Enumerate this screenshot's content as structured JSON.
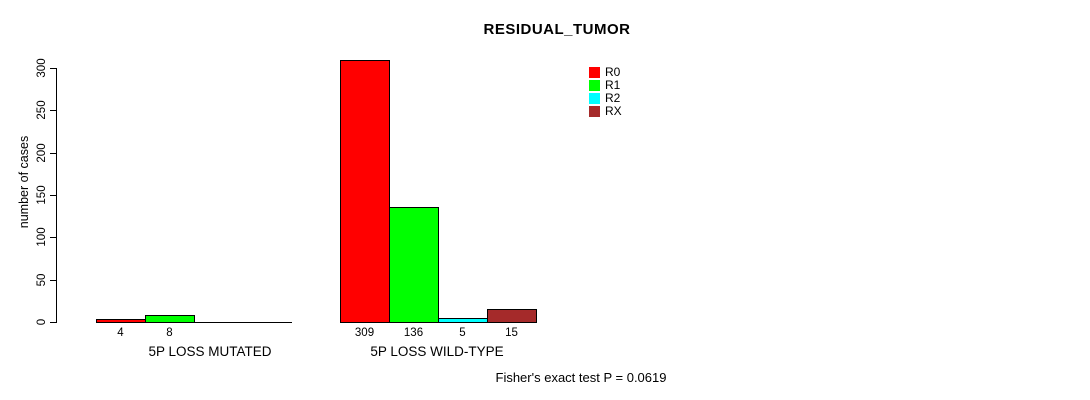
{
  "page": {
    "background": "#ffffff",
    "text_color": "#000000"
  },
  "chart_data": {
    "type": "bar",
    "title": "RESIDUAL_TUMOR",
    "ylabel": "number of cases",
    "xlabel": "",
    "ylim": [
      0,
      300
    ],
    "yticks": [
      0,
      50,
      100,
      150,
      200,
      250,
      300
    ],
    "grid": false,
    "categories": [
      "5P LOSS MUTATED",
      "5P LOSS WILD-TYPE"
    ],
    "series": [
      {
        "name": "R0",
        "color": "#ff0000",
        "values": [
          4,
          309
        ]
      },
      {
        "name": "R1",
        "color": "#00ff00",
        "values": [
          8,
          136
        ]
      },
      {
        "name": "R2",
        "color": "#00ffff",
        "values": [
          0,
          5
        ]
      },
      {
        "name": "RX",
        "color": "#a52a2a",
        "values": [
          0,
          15
        ]
      }
    ],
    "bar_value_labels": {
      "5P LOSS MUTATED": [
        "4",
        "8"
      ],
      "5P LOSS WILD-TYPE": [
        "309",
        "136",
        "5",
        "15"
      ]
    },
    "legend": {
      "position": "top-right",
      "entries": [
        "R0",
        "R1",
        "R2",
        "RX"
      ]
    },
    "annotation": "Fisher's exact test P = 0.0619"
  }
}
